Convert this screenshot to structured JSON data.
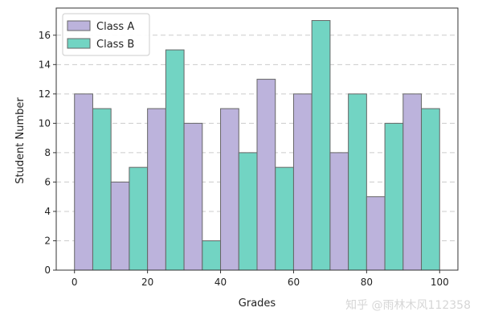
{
  "chart_data": {
    "type": "bar",
    "title": "",
    "xlabel": "Grades",
    "ylabel": "Student Number",
    "xlim": [
      -5,
      105
    ],
    "ylim": [
      0,
      17.85
    ],
    "x_ticks": [
      0,
      20,
      40,
      60,
      80,
      100
    ],
    "y_ticks": [
      0,
      2,
      4,
      6,
      8,
      10,
      12,
      14,
      16
    ],
    "bin_edges": [
      0,
      10,
      20,
      30,
      40,
      50,
      60,
      70,
      80,
      90,
      100
    ],
    "grid": "horizontal dashed",
    "legend_position": "top-left",
    "series": [
      {
        "name": "Class A",
        "color": "#bcb3dc",
        "values": [
          12,
          6,
          11,
          10,
          11,
          13,
          12,
          8,
          5,
          12
        ]
      },
      {
        "name": "Class B",
        "color": "#72d4c3",
        "values": [
          11,
          7,
          15,
          2,
          8,
          7,
          17,
          12,
          10,
          11
        ]
      }
    ]
  },
  "watermark": "知乎 @雨林木风112358"
}
